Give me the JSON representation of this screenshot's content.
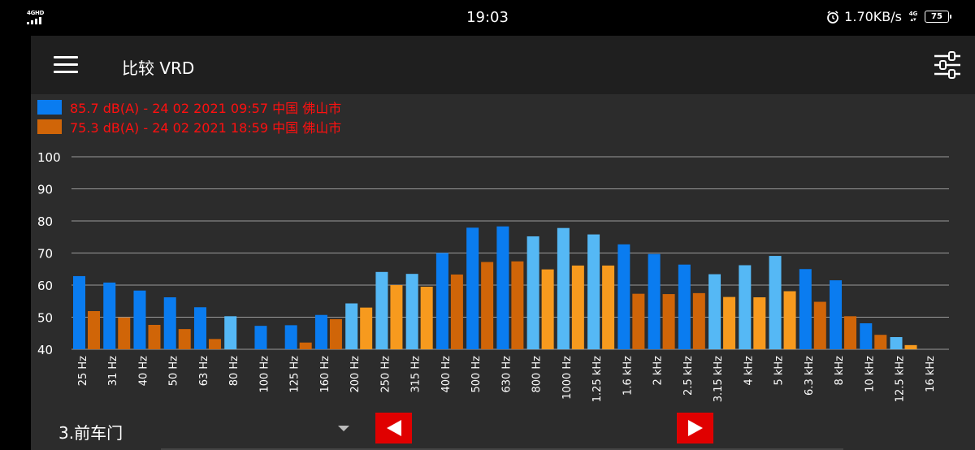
{
  "status_bar": {
    "network_type": "4GHD",
    "time": "19:03",
    "speed": "1.70KB/s",
    "data_type": "4G",
    "battery": "75"
  },
  "header": {
    "title": "比较 VRD",
    "menu_icon": "hamburger-menu-icon",
    "settings_icon": "sliders-filter-icon"
  },
  "chart_data": {
    "type": "bar",
    "title": "",
    "xlabel": "",
    "ylabel": "",
    "ylim": [
      40,
      100
    ],
    "yticks": [
      "100",
      "90",
      "80",
      "70",
      "60",
      "50",
      "40"
    ],
    "grid": true,
    "legend_position": "top-left",
    "categories": [
      "25 Hz",
      "31 Hz",
      "40 Hz",
      "50 Hz",
      "63 Hz",
      "80 Hz",
      "100 Hz",
      "125 Hz",
      "160 Hz",
      "200 Hz",
      "250 Hz",
      "315 Hz",
      "400 Hz",
      "500 Hz",
      "630 Hz",
      "800 Hz",
      "1000 Hz",
      "1.25 kHz",
      "1.6 kHz",
      "2 kHz",
      "2.5 kHz",
      "3.15 kHz",
      "4 kHz",
      "5 kHz",
      "6.3 kHz",
      "8 kHz",
      "10 kHz",
      "12.5 kHz",
      "16 kHz"
    ],
    "series": [
      {
        "name": "85.7 dB(A) - 24 02 2021 09:57 中国 佛山市",
        "color": "#0a7cf0",
        "light_color": "#55b8f5",
        "values": [
          62.8,
          60.8,
          58.3,
          56.2,
          53.1,
          50.3,
          47.3,
          47.5,
          50.7,
          54.3,
          64.1,
          63.5,
          70.0,
          77.9,
          78.3,
          75.2,
          77.8,
          75.8,
          72.7,
          69.7,
          66.4,
          63.4,
          66.2,
          69.1,
          65.0,
          61.5,
          48.1,
          43.8,
          40.0
        ]
      },
      {
        "name": "75.3 dB(A) - 24 02 2021 18:59 中国 佛山市",
        "color": "#d06508",
        "light_color": "#f79a1e",
        "values": [
          51.9,
          49.9,
          47.6,
          46.3,
          43.2,
          40.0,
          40.0,
          42.1,
          49.4,
          53.0,
          60.0,
          59.5,
          63.3,
          67.2,
          67.4,
          64.9,
          66.1,
          66.1,
          57.3,
          57.2,
          57.5,
          56.3,
          56.2,
          58.1,
          54.8,
          50.3,
          44.5,
          41.3,
          40.0
        ]
      }
    ],
    "light_categories": [
      5,
      9,
      10,
      11,
      15,
      16,
      17,
      21,
      22,
      23,
      27
    ]
  },
  "footer": {
    "selected_position": "3.前车门",
    "prev_icon": "left-arrow-icon",
    "next_icon": "right-arrow-icon"
  }
}
